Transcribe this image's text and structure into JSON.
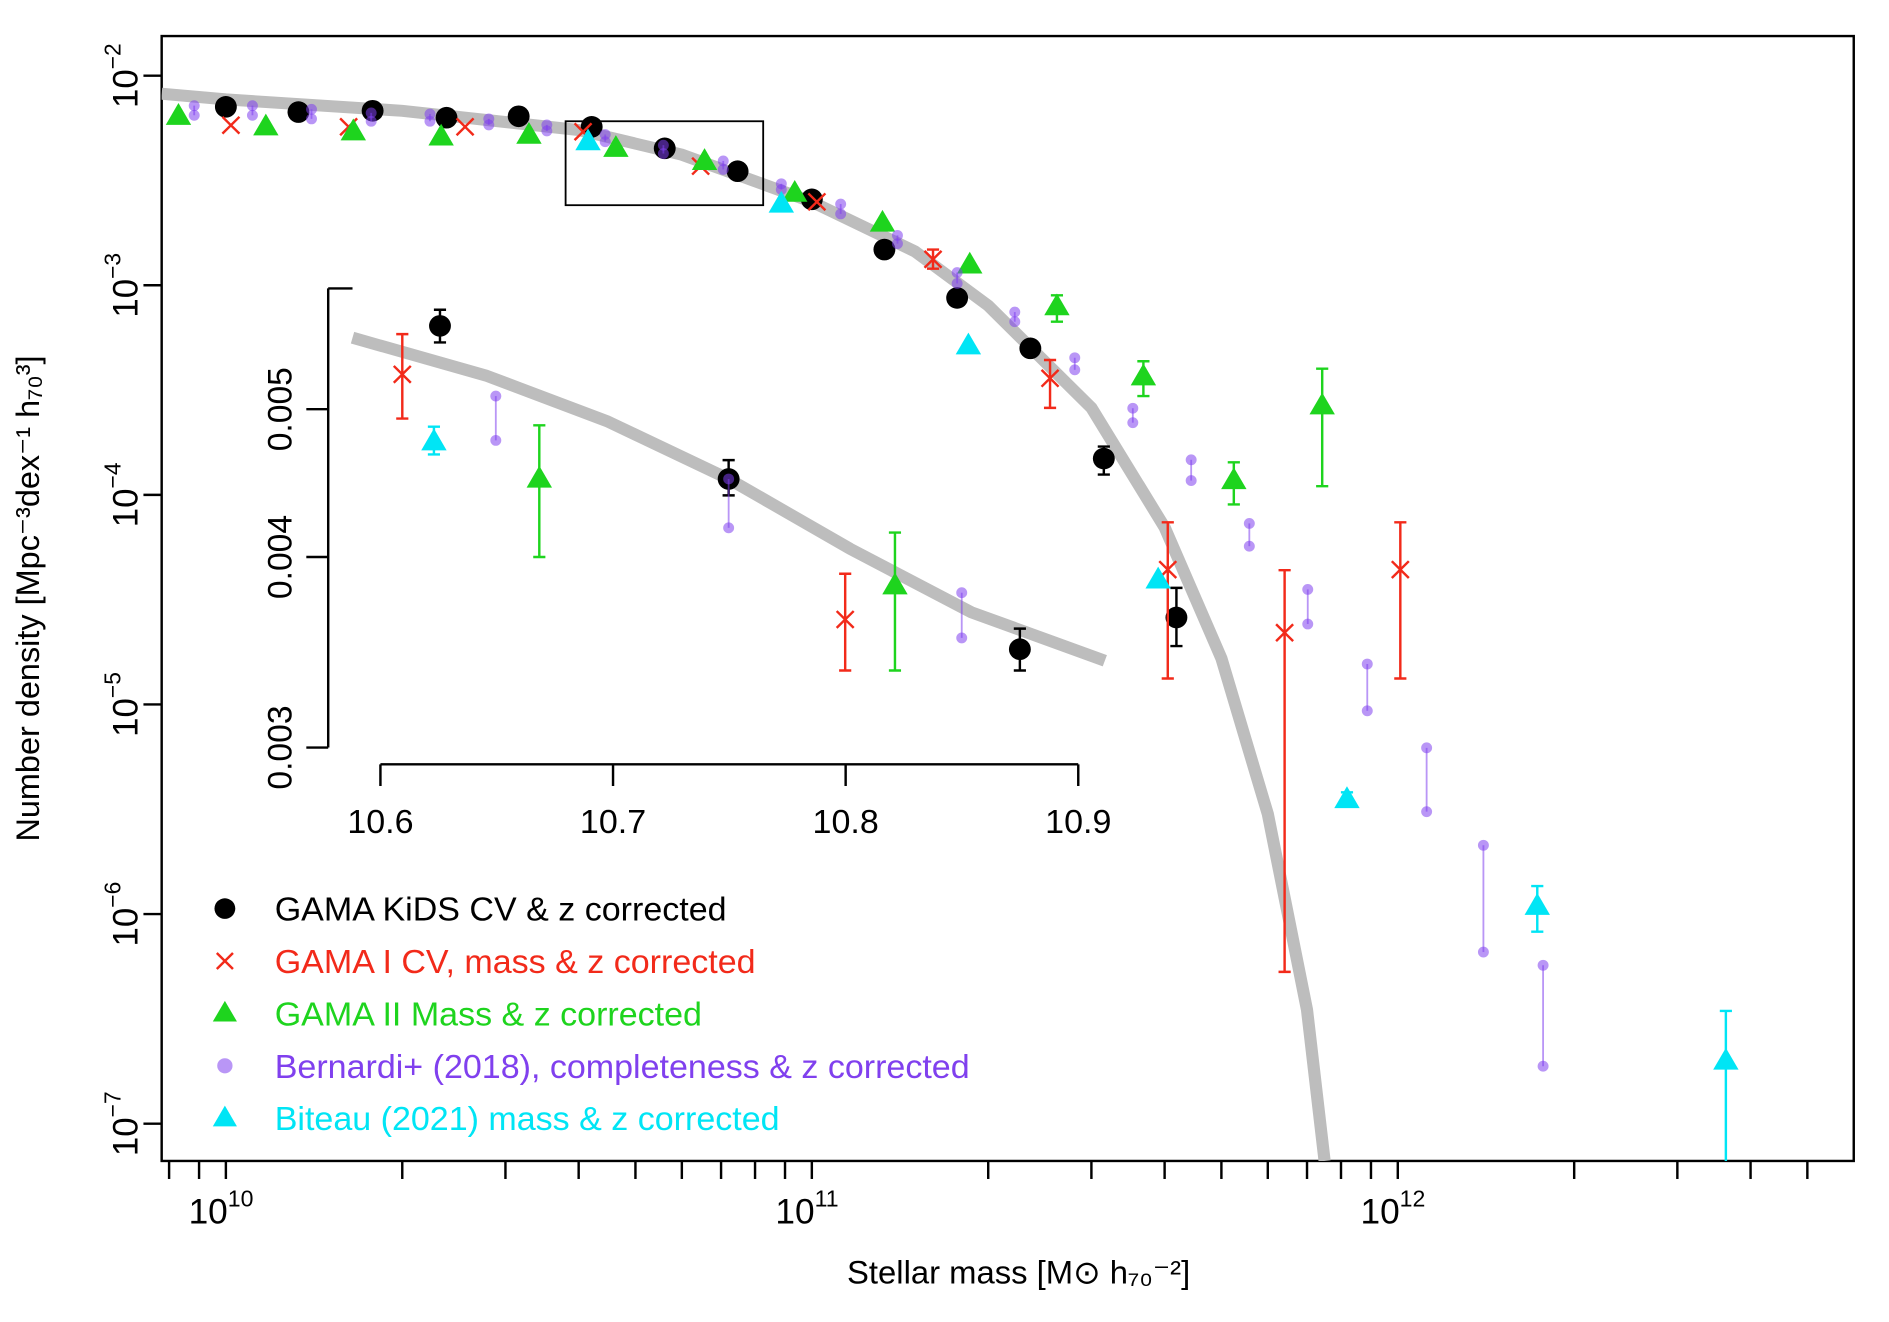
{
  "chart_data": [
    {
      "type": "scatter",
      "xscale": "log",
      "yscale": "log",
      "xlabel": "Stellar mass [M⊙ h₇₀⁻²]",
      "ylabel": "Number density [Mpc⁻³dex⁻¹ h₇₀³]",
      "xlim": [
        7770000000.0,
        6000000000000.0
      ],
      "ylim": [
        6.64e-08,
        0.01545
      ],
      "xticks": [
        {
          "value": 10000000000.0,
          "label": "10",
          "exponent": "10"
        },
        {
          "value": 100000000000.0,
          "label": "10",
          "exponent": "11"
        },
        {
          "value": 1000000000000.0,
          "label": "10",
          "exponent": "12"
        }
      ],
      "xminor": [
        8000000000.0,
        9000000000.0,
        20000000000.0,
        30000000000.0,
        40000000000.0,
        50000000000.0,
        60000000000.0,
        70000000000.0,
        80000000000.0,
        90000000000.0,
        200000000000.0,
        300000000000.0,
        400000000000.0,
        500000000000.0,
        600000000000.0,
        700000000000.0,
        800000000000.0,
        900000000000.0,
        2000000000000.0,
        3000000000000.0,
        4000000000000.0,
        5000000000000.0
      ],
      "yticks": [
        {
          "value": 0.01,
          "label": "10",
          "exponent": "−2"
        },
        {
          "value": 0.001,
          "label": "10",
          "exponent": "−3"
        },
        {
          "value": 0.0001,
          "label": "10",
          "exponent": "−4"
        },
        {
          "value": 1e-05,
          "label": "10",
          "exponent": "−5"
        },
        {
          "value": 1e-06,
          "label": "10",
          "exponent": "−6"
        },
        {
          "value": 1e-07,
          "label": "10",
          "exponent": "−7"
        }
      ],
      "legend": "bottom left",
      "zoom_box": {
        "xlim": [
          38000000000.0,
          82600000000.0
        ],
        "ylim": [
          0.00241,
          0.00606
        ]
      },
      "curve": {
        "color": "#bdbdbd",
        "x": [
          7770000000.0,
          10000000000.0,
          20000000000.0,
          40000000000.0,
          60000000000.0,
          100000000000.0,
          150000000000.0,
          200000000000.0,
          300000000000.0,
          400000000000.0,
          500000000000.0,
          600000000000.0,
          700000000000.0,
          750000000000.0
        ],
        "values": [
          0.0082,
          0.0077,
          0.0068,
          0.0055,
          0.0042,
          0.0025,
          0.00145,
          0.0008,
          0.00026,
          7e-05,
          1.66e-05,
          3e-06,
          3.5e-07,
          6.64e-08
        ]
      },
      "series": [
        {
          "name": "GAMA KiDS CV & z corrected",
          "color": "#000000",
          "marker": "circle",
          "x": [
            10000000000.0,
            13300000000.0,
            17800000000.0,
            23800000000.0,
            31600000000.0,
            42100000000.0,
            56100000000.0,
            74700000000.0,
            100000000000.0,
            133000000000.0,
            177000000000.0,
            236000000000.0,
            315000000000.0,
            419000000000.0
          ],
          "values": [
            0.0071,
            0.0067,
            0.0068,
            0.0063,
            0.0064,
            0.0057,
            0.0045,
            0.0035,
            0.00257,
            0.00148,
            0.00087,
            0.0005,
            0.000149,
            2.6e-05
          ],
          "lower": [
            null,
            null,
            null,
            null,
            null,
            null,
            null,
            null,
            null,
            null,
            null,
            null,
            0.000125,
            1.9e-05
          ],
          "upper": [
            null,
            null,
            null,
            null,
            null,
            null,
            null,
            null,
            null,
            null,
            null,
            null,
            0.00017,
            3.6e-05
          ]
        },
        {
          "name": "GAMA I CV, mass & z corrected",
          "color": "#f22a1a",
          "marker": "cross",
          "x": [
            10200000000.0,
            16200000000.0,
            25600000000.0,
            40700000000.0,
            64600000000.0,
            102000000000.0,
            161000000000.0,
            255000000000.0,
            405000000000.0,
            641000000000.0,
            1010000000000.0
          ],
          "values": [
            0.0058,
            0.0057,
            0.0057,
            0.0054,
            0.0037,
            0.0025,
            0.00133,
            0.00036,
            4.4e-05,
            2.2e-05,
            4.4e-05
          ],
          "lower": [
            null,
            null,
            null,
            null,
            null,
            null,
            0.0012,
            0.00026,
            1.33e-05,
            5.3e-07,
            1.33e-05
          ],
          "upper": [
            null,
            null,
            null,
            null,
            null,
            null,
            0.00148,
            0.00044,
            7.4e-05,
            4.37e-05,
            7.4e-05
          ]
        },
        {
          "name": "GAMA II Mass & z corrected",
          "color": "#1ed41e",
          "marker": "triangle",
          "x": [
            8300000000.0,
            11700000000.0,
            16500000000.0,
            23300000000.0,
            32900000000.0,
            46300000000.0,
            65600000000.0,
            93500000000.0,
            132000000000.0,
            186000000000.0,
            262000000000.0,
            368000000000.0,
            525000000000.0,
            743000000000.0
          ],
          "values": [
            0.0064,
            0.0057,
            0.0054,
            0.0051,
            0.0052,
            0.0045,
            0.0039,
            0.00275,
            0.00198,
            0.00125,
            0.00079,
            0.000366,
            0.000117,
            0.000266
          ],
          "lower": [
            null,
            null,
            null,
            null,
            null,
            null,
            null,
            null,
            null,
            null,
            0.00067,
            0.000296,
            9e-05,
            0.00011
          ],
          "upper": [
            null,
            null,
            null,
            null,
            null,
            null,
            null,
            null,
            null,
            null,
            0.000895,
            0.000434,
            0.000143,
            0.0004
          ]
        },
        {
          "name": "Bernardi+ (2018), completeness & z corrected",
          "color": "#8040ee",
          "marker": "dot",
          "x": [
            8830000000.0,
            11100000000.0,
            14000000000.0,
            17700000000.0,
            22300000000.0,
            28100000000.0,
            35300000000.0,
            44400000000.0,
            55800000000.0,
            70600000000.0,
            88700000000.0,
            112000000000.0,
            140000000000.0,
            177000000000.0,
            222000000000.0,
            281000000000.0,
            353000000000.0,
            444000000000.0,
            558000000000.0,
            702000000000.0,
            887000000000.0,
            1120000000000.0,
            1400000000000.0,
            1770000000000.0
          ],
          "values": [
            0.00719,
            0.00719,
            0.00691,
            0.00664,
            0.00656,
            0.00622,
            0.00582,
            0.00524,
            0.00466,
            0.00392,
            0.00305,
            0.00244,
            0.00173,
            0.00115,
            0.000745,
            0.000451,
            0.000259,
            0.000147,
            7.31e-05,
            3.54e-05,
            1.56e-05,
            6.21e-06,
            2.13e-06,
            5.7e-07
          ],
          "lower": [
            0.00647,
            0.00647,
            0.00622,
            0.00606,
            0.00606,
            0.00582,
            0.00545,
            0.00484,
            0.00425,
            0.00357,
            0.00286,
            0.00219,
            0.00158,
            0.00102,
            0.00067,
            0.000395,
            0.000221,
            0.000117,
            5.69e-05,
            2.42e-05,
            9.33e-06,
            3.08e-06,
            6.59e-07,
            1.88e-07
          ]
        },
        {
          "name": "Biteau (2021) mass & z corrected",
          "color": "#00e5f5",
          "marker": "triangle",
          "x": [
            41500000000.0,
            88700000000.0,
            185000000000.0,
            390000000000.0,
            819000000000.0,
            1730000000000.0,
            3630000000000.0
          ],
          "values": [
            0.00484,
            0.00244,
            0.000514,
            3.93e-05,
            3.52e-06,
            1.09e-06,
            1.99e-07
          ],
          "lower": [
            null,
            null,
            null,
            null,
            3.25e-06,
            8.24e-07,
            5e-08
          ],
          "upper": [
            null,
            null,
            null,
            null,
            3.81e-06,
            1.36e-06,
            3.45e-07
          ]
        }
      ]
    },
    {
      "type": "scatter",
      "xscale": "linear",
      "yscale": "log",
      "xlim": [
        10.588,
        10.912
      ],
      "ylim": [
        0.003,
        0.006
      ],
      "xticks": [
        10.6,
        10.7,
        10.8,
        10.9
      ],
      "yticks": [
        0.003,
        0.004,
        0.005
      ],
      "curve": {
        "color": "#bdbdbd",
        "x": [
          10.588,
          10.6454,
          10.6975,
          10.7497,
          10.8019,
          10.854,
          10.9114
        ],
        "values": [
          0.00557,
          0.00526,
          0.00491,
          0.0045,
          0.00405,
          0.00368,
          0.00342
        ]
      },
      "series": [
        {
          "color": "#000000",
          "marker": "circle",
          "x": [
            10.6256,
            10.7497,
            10.8749
          ],
          "values": [
            0.00567,
            0.0045,
            0.00348
          ],
          "lower": [
            0.00553,
            0.00439,
            0.00337
          ],
          "upper": [
            0.00581,
            0.00463,
            0.00359
          ]
        },
        {
          "color": "#f22a1a",
          "marker": "cross",
          "x": [
            10.6094,
            10.7998
          ],
          "values": [
            0.00527,
            0.00364
          ],
          "lower": [
            0.00493,
            0.00337
          ],
          "upper": [
            0.0056,
            0.0039
          ]
        },
        {
          "color": "#1ed41e",
          "marker": "triangle",
          "x": [
            10.6683,
            10.8212
          ],
          "values": [
            0.0045,
            0.00383
          ],
          "lower": [
            0.004,
            0.00337
          ],
          "upper": [
            0.00488,
            0.00415
          ]
        },
        {
          "color": "#8040ee",
          "marker": "dot",
          "x": [
            10.6496,
            10.7497,
            10.8499
          ],
          "values": [
            0.0051,
            0.0045,
            0.00379
          ],
          "lower": [
            0.00477,
            0.00418,
            0.00354
          ]
        },
        {
          "color": "#00e5f5",
          "marker": "triangle",
          "x": [
            10.623
          ],
          "values": [
            0.00476
          ],
          "lower": [
            0.00467
          ],
          "upper": [
            0.00487
          ]
        }
      ]
    }
  ]
}
